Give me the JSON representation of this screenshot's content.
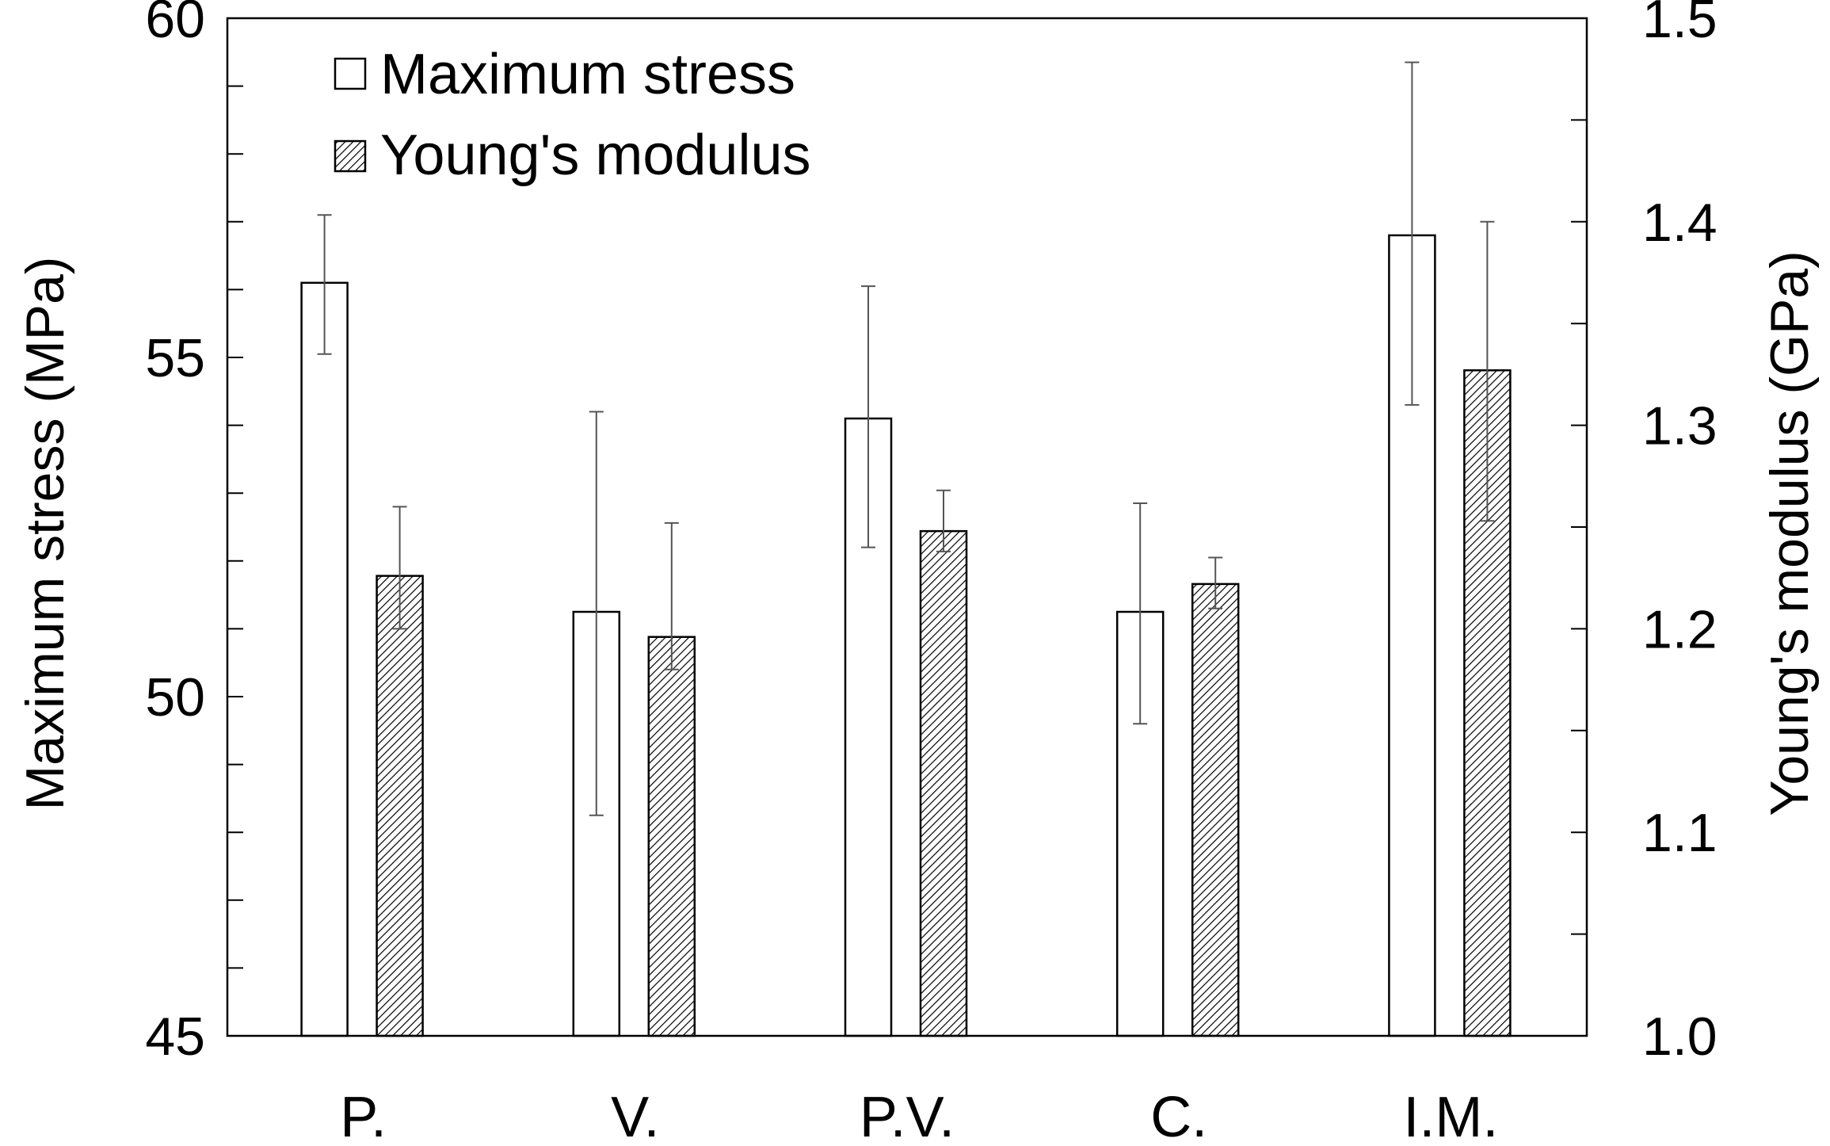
{
  "chart_data": {
    "type": "bar",
    "categories": [
      "P.",
      "V.",
      "P.V.",
      "C.",
      "I.M."
    ],
    "series": [
      {
        "name": "Maximum stress",
        "axis": "left",
        "values": [
          56.1,
          51.25,
          54.1,
          51.25,
          56.8
        ],
        "error_low": [
          55.05,
          48.25,
          52.2,
          49.6,
          54.3
        ],
        "error_high": [
          57.1,
          54.2,
          56.05,
          52.85,
          59.35
        ],
        "fill": "#ffffff",
        "pattern": "none"
      },
      {
        "name": "Young's modulus",
        "axis": "right",
        "values": [
          1.226,
          1.196,
          1.248,
          1.222,
          1.327
        ],
        "error_low": [
          1.2,
          1.18,
          1.238,
          1.21,
          1.253
        ],
        "error_high": [
          1.26,
          1.252,
          1.268,
          1.235,
          1.4
        ],
        "fill": "#ffffff",
        "pattern": "diagonal-hatch"
      }
    ],
    "y_left": {
      "label": "Maximum stress (MPa)",
      "ylim": [
        45,
        60
      ],
      "ticks": [
        "45",
        "50",
        "55",
        "60"
      ],
      "tick_values": [
        45,
        50,
        55,
        60
      ],
      "minor_step": 1
    },
    "y_right": {
      "label": "Young's modulus (GPa)",
      "ylim": [
        1.0,
        1.5
      ],
      "ticks": [
        "1.0",
        "1.1",
        "1.2",
        "1.3",
        "1.4",
        "1.5"
      ],
      "tick_values": [
        1.0,
        1.1,
        1.2,
        1.3,
        1.4,
        1.5
      ],
      "minor_step": 0.05
    },
    "legend": {
      "position": "top-left",
      "entries": [
        "Maximum stress",
        "Young's modulus"
      ]
    },
    "colors": {
      "axis": "#000000",
      "hatch": "#000000",
      "error_bar": "#555555"
    },
    "grid": false
  }
}
